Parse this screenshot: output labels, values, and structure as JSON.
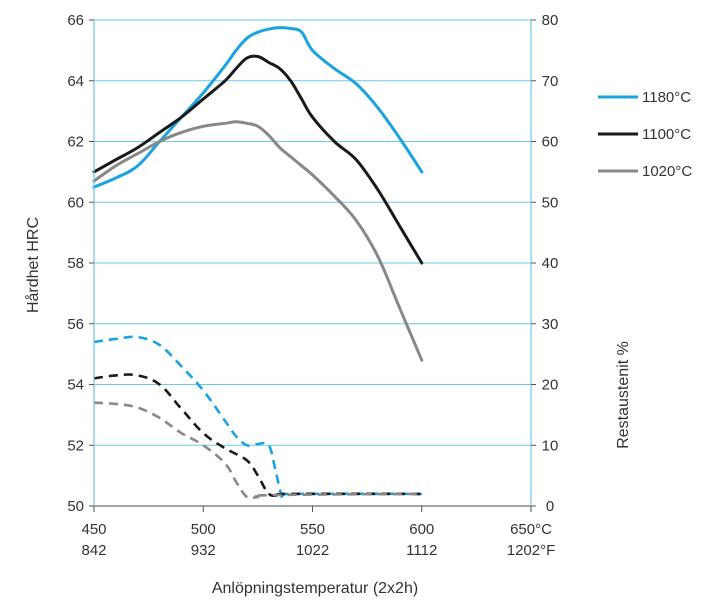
{
  "chart_data": {
    "type": "line",
    "xlabel": "Anlöpningstemperatur (2x2h)",
    "ylabel_left": "Hårdhet HRC",
    "ylabel_right": "Restaustenit %",
    "xlim": [
      450,
      650
    ],
    "ylim_left": [
      50,
      66
    ],
    "ylim_right": [
      0,
      80
    ],
    "x_ticks": [
      {
        "value": 450,
        "label_c": "450",
        "label_f": "842"
      },
      {
        "value": 500,
        "label_c": "500",
        "label_f": "932"
      },
      {
        "value": 550,
        "label_c": "550",
        "label_f": "1022"
      },
      {
        "value": 600,
        "label_c": "600",
        "label_f": "1112"
      },
      {
        "value": 650,
        "label_c": "650°C",
        "label_f": "1202°F"
      }
    ],
    "y_left_ticks": [
      "50",
      "52",
      "54",
      "56",
      "58",
      "60",
      "62",
      "64",
      "66"
    ],
    "y_right_ticks": [
      "0",
      "10",
      "20",
      "30",
      "40",
      "50",
      "60",
      "70",
      "80"
    ],
    "grid": true,
    "legend_position": "right",
    "series": [
      {
        "name": "1180°C",
        "color": "#1aa3df",
        "kind": "hardness",
        "x": [
          450,
          460,
          470,
          480,
          490,
          500,
          510,
          515,
          520,
          525,
          530,
          535,
          540,
          545,
          550,
          560,
          570,
          580,
          590,
          600
        ],
        "y": [
          60.5,
          60.8,
          61.2,
          62.0,
          62.8,
          63.6,
          64.5,
          65.0,
          65.4,
          65.6,
          65.7,
          65.75,
          65.72,
          65.6,
          65.0,
          64.4,
          63.9,
          63.1,
          62.1,
          61.0
        ]
      },
      {
        "name": "1100°C",
        "color": "#1a1a1a",
        "kind": "hardness",
        "x": [
          450,
          460,
          470,
          480,
          490,
          500,
          510,
          515,
          520,
          525,
          530,
          535,
          540,
          545,
          550,
          560,
          570,
          580,
          590,
          600
        ],
        "y": [
          61.0,
          61.4,
          61.8,
          62.3,
          62.8,
          63.4,
          64.0,
          64.4,
          64.75,
          64.8,
          64.6,
          64.4,
          64.0,
          63.4,
          62.8,
          62.0,
          61.4,
          60.4,
          59.2,
          58.0
        ]
      },
      {
        "name": "1020°C",
        "color": "#888888",
        "kind": "hardness",
        "x": [
          450,
          460,
          470,
          480,
          490,
          500,
          510,
          515,
          520,
          525,
          530,
          535,
          540,
          545,
          550,
          560,
          570,
          580,
          590,
          600
        ],
        "y": [
          60.7,
          61.2,
          61.6,
          62.0,
          62.3,
          62.5,
          62.6,
          62.65,
          62.6,
          62.5,
          62.2,
          61.8,
          61.5,
          61.2,
          60.9,
          60.2,
          59.4,
          58.2,
          56.5,
          54.8
        ]
      },
      {
        "name": "1180°C",
        "color": "#1aa3df",
        "kind": "austenite",
        "x": [
          450,
          460,
          470,
          480,
          490,
          500,
          510,
          515,
          520,
          525,
          530,
          533,
          536,
          540,
          600
        ],
        "y": [
          27,
          27.5,
          27.8,
          26.5,
          23,
          19,
          14,
          11.5,
          10,
          10.2,
          10,
          6,
          1.8,
          2,
          2
        ]
      },
      {
        "name": "1100°C",
        "color": "#1a1a1a",
        "kind": "austenite",
        "x": [
          450,
          460,
          470,
          480,
          490,
          500,
          510,
          520,
          525,
          530,
          535,
          540,
          600
        ],
        "y": [
          21,
          21.5,
          21.5,
          20,
          16,
          12,
          9.5,
          7.5,
          5,
          2,
          1.8,
          2,
          2
        ]
      },
      {
        "name": "1020°C",
        "color": "#888888",
        "kind": "austenite",
        "x": [
          450,
          460,
          470,
          480,
          490,
          500,
          510,
          515,
          520,
          525,
          530,
          600
        ],
        "y": [
          17,
          16.8,
          16.2,
          14.5,
          12,
          10,
          7,
          4,
          1.5,
          1.5,
          1.8,
          2
        ]
      }
    ]
  }
}
